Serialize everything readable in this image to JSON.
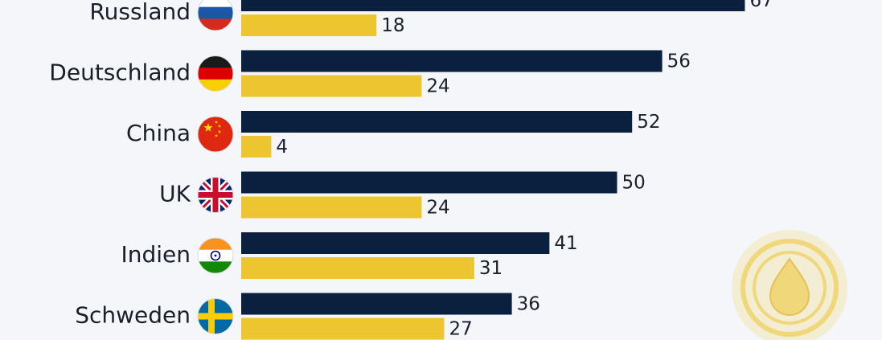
{
  "chart_data": {
    "type": "bar",
    "orientation": "horizontal",
    "categories": [
      "Russland",
      "Deutschland",
      "China",
      "UK",
      "Indien",
      "Schweden"
    ],
    "series": [
      {
        "values": [
          67,
          56,
          52,
          50,
          41,
          36
        ],
        "color": "#0b1f3f"
      },
      {
        "values": [
          18,
          24,
          4,
          24,
          31,
          27
        ],
        "color": "#edc531"
      }
    ],
    "category_icons": [
      "flag-russia-icon",
      "flag-germany-icon",
      "flag-china-icon",
      "flag-uk-icon",
      "flag-india-icon",
      "flag-sweden-icon"
    ],
    "value_labels": true,
    "grid": false,
    "legend": "none"
  },
  "decoration": {
    "icon": "oil-drop-pin-icon",
    "color": "#f0d77a"
  },
  "colors": {
    "background": "#f4f6f9",
    "text": "#1b1f2b"
  }
}
